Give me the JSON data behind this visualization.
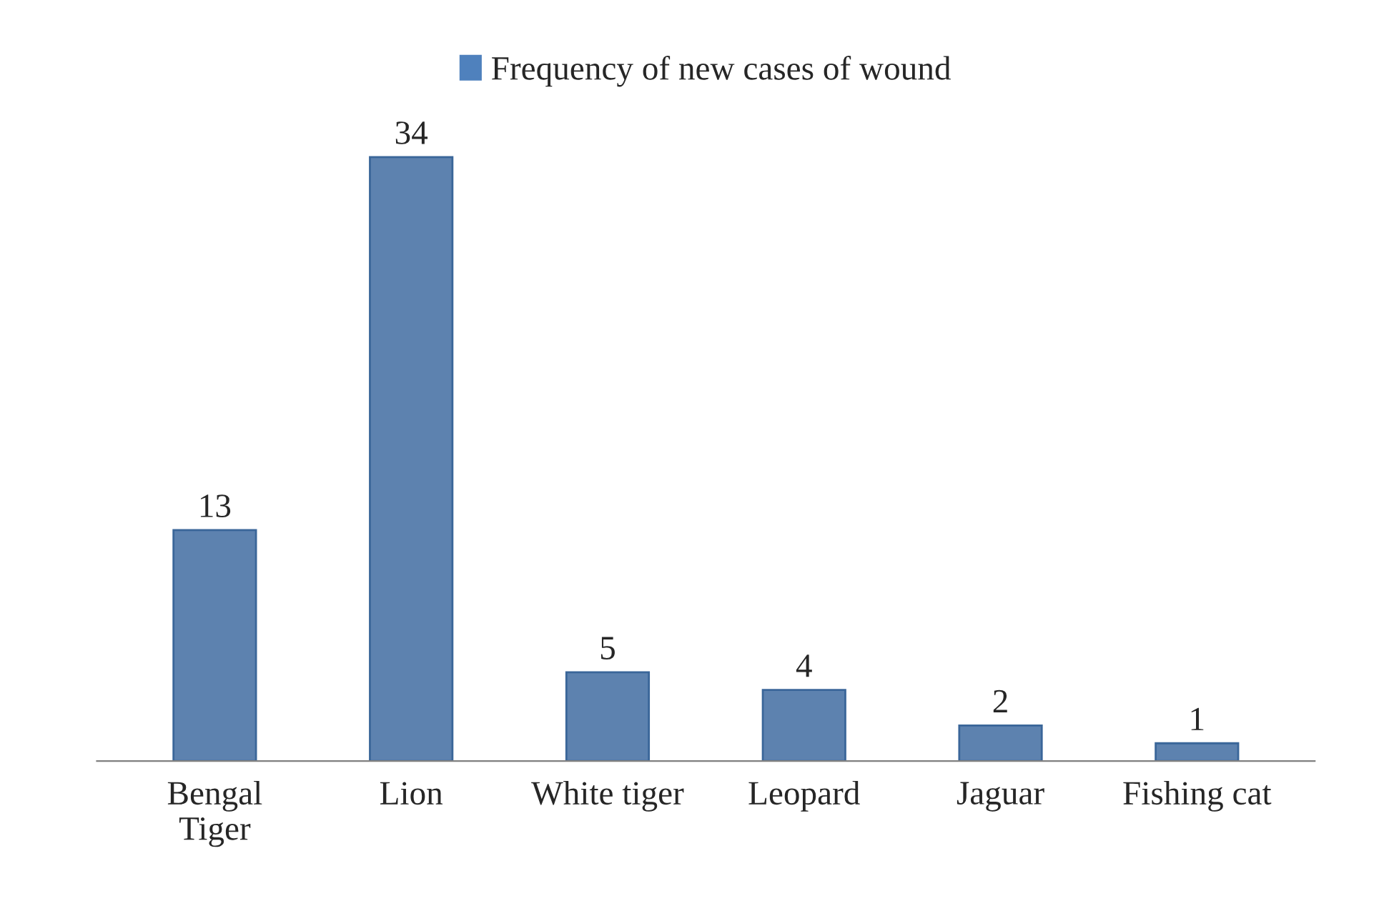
{
  "chart_data": {
    "type": "bar",
    "categories": [
      "Bengal\nTiger",
      "Lion",
      "White tiger",
      "Leopard",
      "Jaguar",
      "Fishing cat"
    ],
    "series": [
      {
        "name": "Frequency of new cases of wound",
        "color": "#4f81bd",
        "values": [
          13,
          34,
          5,
          4,
          2,
          1
        ]
      }
    ],
    "data_labels": true,
    "legend": "top"
  }
}
